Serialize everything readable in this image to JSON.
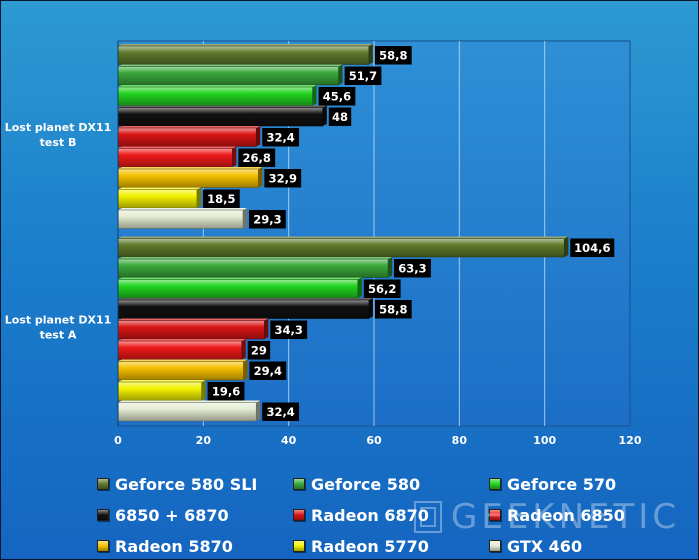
{
  "chart_data": {
    "type": "bar",
    "orientation": "horizontal",
    "categories": [
      "Lost planet DX11 test B",
      "Lost planet DX11 test A"
    ],
    "category_lines": [
      [
        "Lost planet DX11",
        "test B"
      ],
      [
        "Lost planet DX11",
        "test A"
      ]
    ],
    "series": [
      {
        "name": "Geforce 580 SLI",
        "color": "#5e7a2c",
        "values": [
          58.8,
          104.6
        ]
      },
      {
        "name": "Geforce 580",
        "color": "#3aa83a",
        "values": [
          51.7,
          63.3
        ]
      },
      {
        "name": "Geforce 570",
        "color": "#21d421",
        "values": [
          45.6,
          56.2
        ]
      },
      {
        "name": "6850 + 6870",
        "color": "#111111",
        "values": [
          48,
          58.8
        ]
      },
      {
        "name": "Radeon 6870",
        "color": "#d81515",
        "values": [
          32.4,
          34.3
        ]
      },
      {
        "name": "Radeon 6850",
        "color": "#ee1a1a",
        "values": [
          26.8,
          29
        ]
      },
      {
        "name": "Radeon 5870",
        "color": "#f5c000",
        "values": [
          32.9,
          29.4
        ]
      },
      {
        "name": "Radeon 5770",
        "color": "#f2f200",
        "values": [
          18.5,
          19.6
        ]
      },
      {
        "name": "GTX 460",
        "color": "#e4ecd2",
        "values": [
          29.3,
          32.4
        ]
      }
    ],
    "value_labels": [
      [
        "58,8",
        "104,6"
      ],
      [
        "51,7",
        "63,3"
      ],
      [
        "45,6",
        "56,2"
      ],
      [
        "48",
        "58,8"
      ],
      [
        "32,4",
        "34,3"
      ],
      [
        "26,8",
        "29"
      ],
      [
        "32,9",
        "29,4"
      ],
      [
        "18,5",
        "19,6"
      ],
      [
        "29,3",
        "32,4"
      ]
    ],
    "xlim": [
      0,
      120
    ],
    "xticks": [
      "0",
      "20",
      "40",
      "60",
      "80",
      "100",
      "120"
    ],
    "grid": true,
    "legend_position": "bottom"
  },
  "watermark": {
    "text": "GEEKNETIC"
  }
}
